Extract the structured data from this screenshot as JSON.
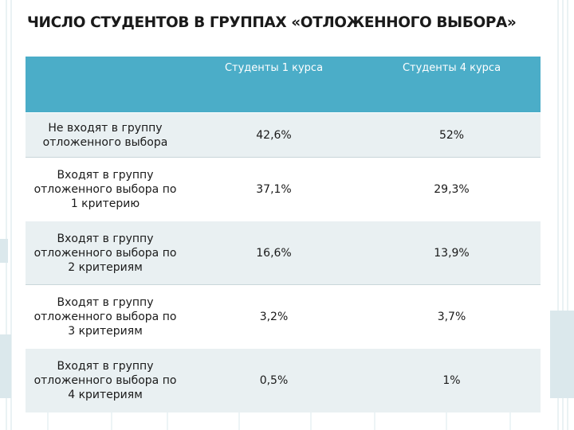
{
  "title": "ЧИСЛО СТУДЕНТОВ В ГРУППАХ «ОТЛОЖЕННОГО ВЫБОРА»",
  "table": {
    "headers": [
      "",
      "Студенты 1 курса",
      "Студенты 4 курса"
    ],
    "rows": [
      {
        "label": "Не входят в группу отложенного выбора",
        "c1": "42,6%",
        "c4": "52%"
      },
      {
        "label": "Входят в группу отложенного выбора по 1 критерию",
        "c1": "37,1%",
        "c4": "29,3%"
      },
      {
        "label": "Входят в группу отложенного выбора по 2 критериям",
        "c1": "16,6%",
        "c4": "13,9%"
      },
      {
        "label": "Входят в группу отложенного выбора по 3 критериям",
        "c1": "3,2%",
        "c4": "3,7%"
      },
      {
        "label": "Входят в группу отложенного выбора по 4 критериям",
        "c1": "0,5%",
        "c4": "1%"
      }
    ]
  },
  "colors": {
    "header": "#4badc8",
    "row_light": "#e9f0f2",
    "row_white": "#ffffff"
  }
}
